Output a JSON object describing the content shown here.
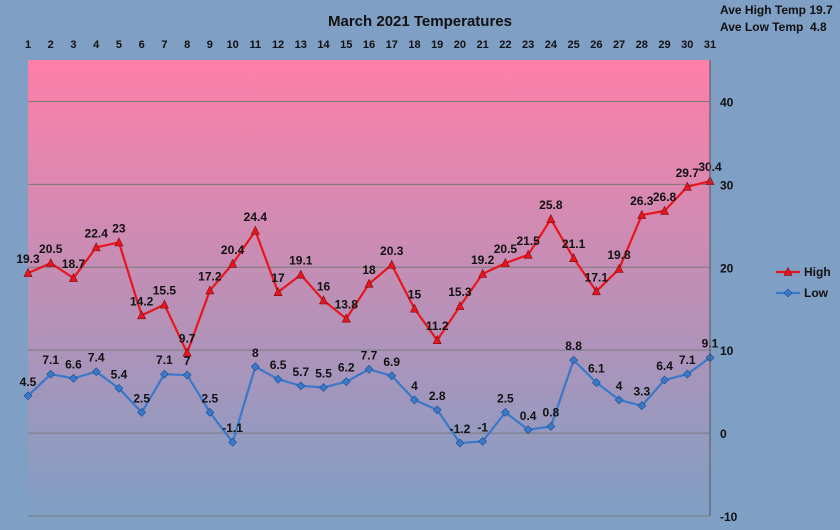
{
  "chart_data": {
    "type": "line",
    "title": "March 2021 Temperatures",
    "annotations": [
      "Ave High Temp 19.7",
      "Ave Low Temp  4.8"
    ],
    "x": [
      1,
      2,
      3,
      4,
      5,
      6,
      7,
      8,
      9,
      10,
      11,
      12,
      13,
      14,
      15,
      16,
      17,
      18,
      19,
      20,
      21,
      22,
      23,
      24,
      25,
      26,
      27,
      28,
      29,
      30,
      31
    ],
    "x_tick_labels": [
      "1",
      "2",
      "3",
      "4",
      "5",
      "6",
      "7",
      "8",
      "9",
      "10",
      "11",
      "12",
      "13",
      "14",
      "15",
      "16",
      "17",
      "18",
      "19",
      "20",
      "21",
      "22",
      "23",
      "24",
      "25",
      "26",
      "27",
      "28",
      "29",
      "30",
      "31"
    ],
    "y_ticks": [
      -10,
      0,
      10,
      20,
      30,
      40
    ],
    "y_tick_labels": [
      "-10",
      "0",
      "10",
      "20",
      "30",
      "40"
    ],
    "ylim": [
      -10,
      45
    ],
    "grid": true,
    "legend_position": "right",
    "series": [
      {
        "name": "High",
        "color": "#e8161c",
        "marker": "triangle",
        "values": [
          19.3,
          20.5,
          18.7,
          22.4,
          23,
          14.2,
          15.5,
          9.7,
          17.2,
          20.4,
          24.4,
          17,
          19.1,
          16,
          13.8,
          18,
          20.3,
          15,
          11.2,
          15.3,
          19.2,
          20.5,
          21.5,
          25.8,
          21.1,
          17.1,
          19.8,
          26.3,
          26.8,
          29.7,
          30.4
        ],
        "labels": [
          "19.3",
          "20.5",
          "18.7",
          "22.4",
          "23",
          "14.2",
          "15.5",
          "9.7",
          "17.2",
          "20.4",
          "24.4",
          "17",
          "19.1",
          "16",
          "13.8",
          "18",
          "20.3",
          "15",
          "11.2",
          "15.3",
          "19.2",
          "20.5",
          "21.5",
          "25.8",
          "21.1",
          "17.1",
          "19.8",
          "26.3",
          "26.8",
          "29.7",
          "30.4"
        ]
      },
      {
        "name": "Low",
        "color": "#3a78c9",
        "marker": "diamond",
        "values": [
          4.5,
          7.1,
          6.6,
          7.4,
          5.4,
          2.5,
          7.1,
          7,
          2.5,
          -1.1,
          8,
          6.5,
          5.7,
          5.5,
          6.2,
          7.7,
          6.9,
          4,
          2.8,
          -1.2,
          -1,
          2.5,
          0.4,
          0.8,
          8.8,
          6.1,
          4,
          3.3,
          6.4,
          7.1,
          9.1
        ],
        "labels": [
          "4.5",
          "7.1",
          "6.6",
          "7.4",
          "5.4",
          "2.5",
          "7.1",
          "7",
          "2.5",
          "-1.1",
          "8",
          "6.5",
          "5.7",
          "5.5",
          "6.2",
          "7.7",
          "6.9",
          "4",
          "2.8",
          "-1.2",
          "-1",
          "2.5",
          "0.4",
          "0.8",
          "8.8",
          "6.1",
          "4",
          "3.3",
          "6.4",
          "7.1",
          "9.1"
        ]
      }
    ],
    "colors": {
      "background": "#7f9fc4",
      "plot_top": "#ff7fa8",
      "plot_bottom": "#7f9fc4",
      "gridline": "#7a7a7a"
    }
  }
}
